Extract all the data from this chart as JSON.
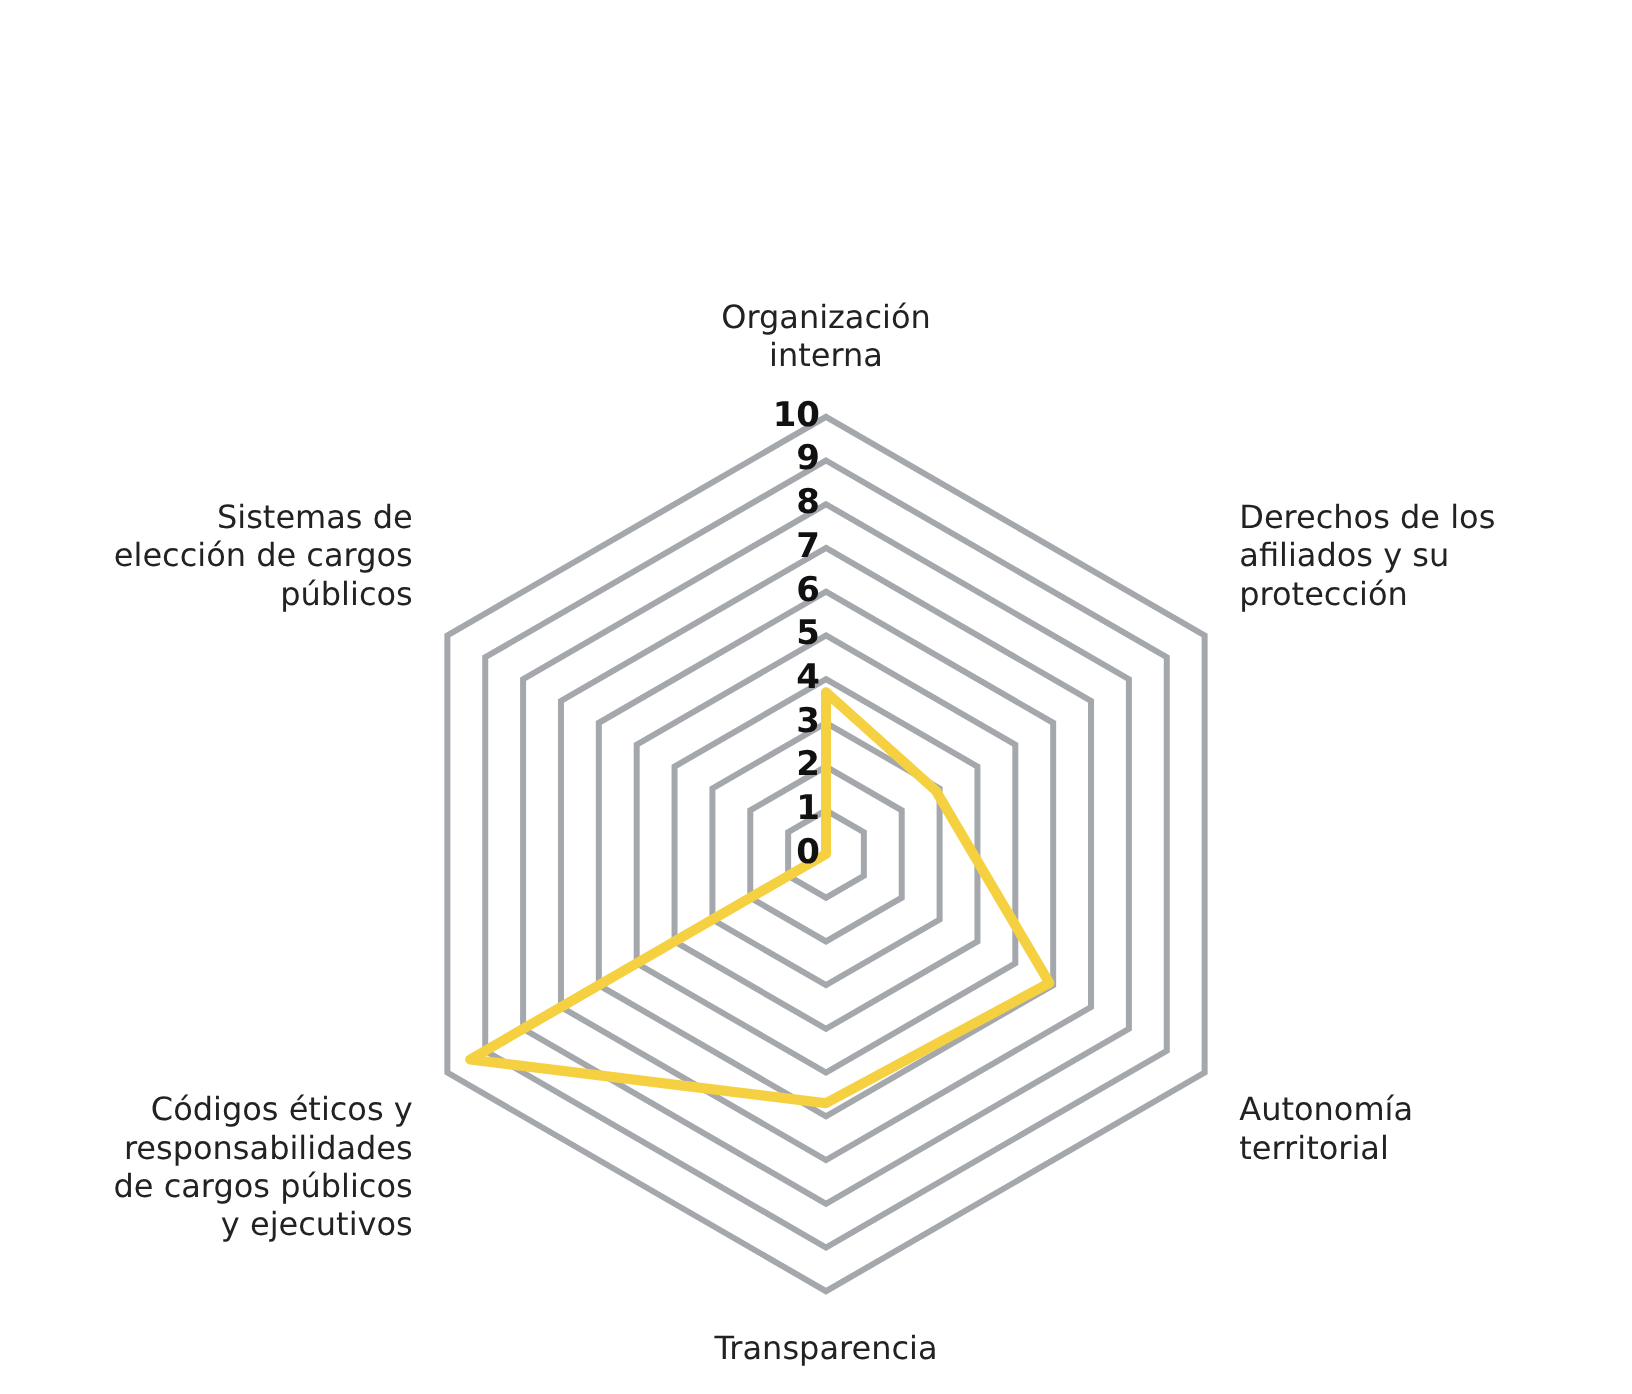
{
  "chart_data": {
    "type": "radar",
    "categories": [
      "Organización interna",
      "Derechos de los afiliados y su protección",
      "Autonomía territorial",
      "Transparencia",
      "Códigos éticos y responsabilidades de cargos públicos y ejecutivos",
      "Sistemas de elección de cargos públicos"
    ],
    "series": [
      {
        "color": "#f5d142",
        "values": [
          3.7,
          2.9,
          5.9,
          5.7,
          9.4,
          0
        ]
      }
    ],
    "ylim": [
      0,
      10
    ],
    "yticks": [
      0,
      1,
      2,
      3,
      4,
      5,
      6,
      7,
      8,
      9,
      10
    ],
    "grid": true,
    "legend": false,
    "marker": "none",
    "line_style": "solid"
  }
}
